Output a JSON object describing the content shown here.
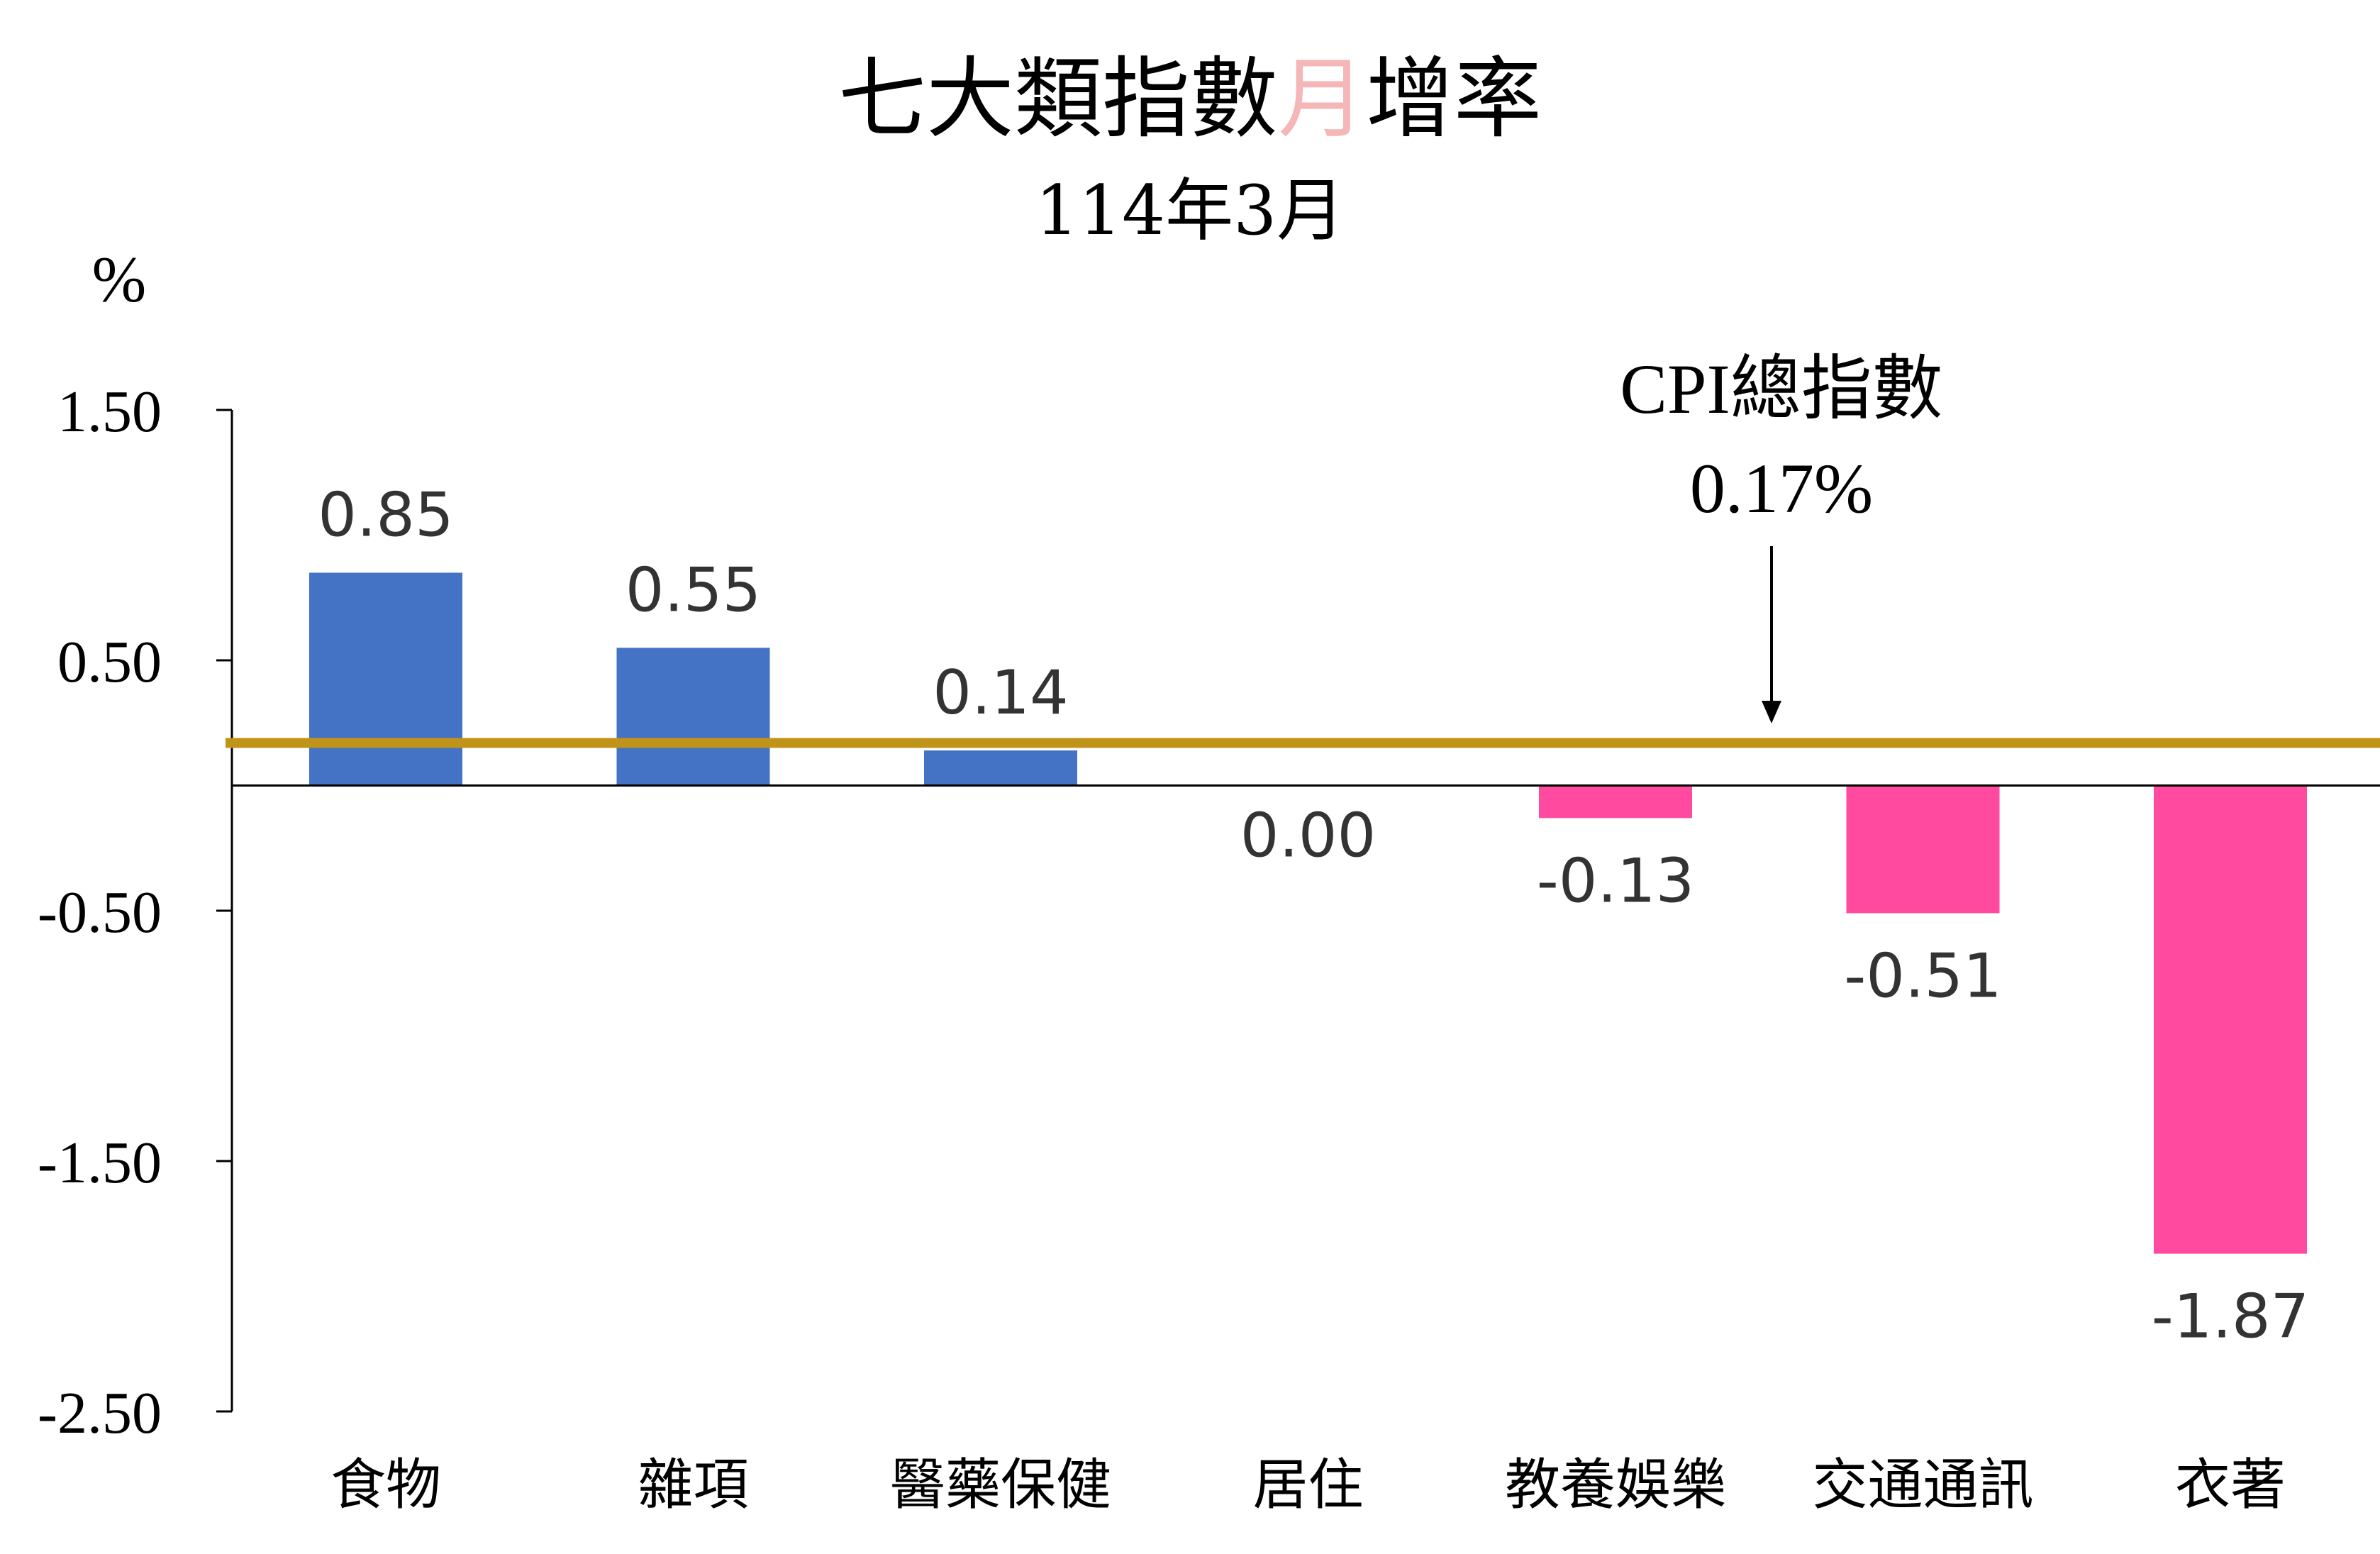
{
  "chart_data": {
    "type": "bar",
    "title_parts": [
      {
        "text": "七大類指數",
        "color": "#000000"
      },
      {
        "text": "月",
        "color": "#f4b6b6"
      },
      {
        "text": "增率",
        "color": "#000000"
      }
    ],
    "subtitle": "114年3月",
    "ylabel": "%",
    "ylim": [
      -2.5,
      1.5
    ],
    "yticks": [
      1.5,
      0.5,
      -0.5,
      -1.5,
      -2.5
    ],
    "ytick_labels": [
      "1.50",
      "0.50",
      "-0.50",
      "-1.50",
      "-2.50"
    ],
    "categories": [
      "食物",
      "雜項",
      "醫藥保健",
      "居住",
      "教養娛樂",
      "交通通訊",
      "衣著"
    ],
    "values": [
      0.85,
      0.55,
      0.14,
      0.0,
      -0.13,
      -0.51,
      -1.87
    ],
    "value_labels": [
      "0.85",
      "0.55",
      "0.14",
      "0.00",
      "-0.13",
      "-0.51",
      "-1.87"
    ],
    "colors": {
      "positive": "#4472c4",
      "negative": "#ff4aa0",
      "reference": "#c09418"
    },
    "reference_line": {
      "value": 0.17,
      "label_line1": "CPI總指數",
      "label_line2": "0.17%"
    },
    "grid": false
  }
}
